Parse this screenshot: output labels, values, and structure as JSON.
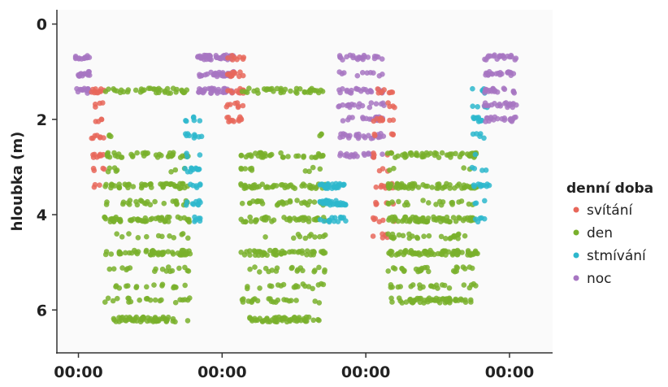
{
  "chart_data": {
    "type": "scatter",
    "title": "",
    "xlabel": "",
    "ylabel": "hloubka (m)",
    "y_reversed": true,
    "ylim": [
      6.9,
      -0.3
    ],
    "yticks": [
      0,
      2,
      4,
      6
    ],
    "xlim": [
      -0.15,
      3.3
    ],
    "xticks": [
      0,
      1,
      2,
      3
    ],
    "xtick_labels": [
      "00:00",
      "00:00",
      "00:00",
      "00:00"
    ],
    "grid": false,
    "legend": {
      "title": "denní doba",
      "position": "right"
    },
    "series": [
      {
        "name": "svítání",
        "color": "#e8675a"
      },
      {
        "name": "den",
        "color": "#79b02c"
      },
      {
        "name": "stmívání",
        "color": "#2db7cc"
      },
      {
        "name": "noc",
        "color": "#a776c2"
      }
    ],
    "segments": [
      {
        "series": 3,
        "x": [
          -0.02,
          0.08
        ],
        "depth": [
          0.7,
          1.4
        ]
      },
      {
        "series": 0,
        "x": [
          0.08,
          0.18
        ],
        "depth": [
          1.4,
          3.4
        ]
      },
      {
        "series": 1,
        "x": [
          0.18,
          0.78
        ],
        "depth": [
          1.4,
          6.2
        ]
      },
      {
        "series": 2,
        "x": [
          0.74,
          0.86
        ],
        "depth": [
          2.0,
          4.4
        ]
      },
      {
        "series": 3,
        "x": [
          0.83,
          1.08
        ],
        "depth": [
          0.7,
          1.5
        ]
      },
      {
        "series": 0,
        "x": [
          1.03,
          1.15
        ],
        "depth": [
          0.7,
          2.0
        ]
      },
      {
        "series": 1,
        "x": [
          1.13,
          1.72
        ],
        "depth": [
          1.4,
          6.2
        ]
      },
      {
        "series": 2,
        "x": [
          1.68,
          1.86
        ],
        "depth": [
          3.4,
          4.2
        ]
      },
      {
        "series": 3,
        "x": [
          1.81,
          2.13
        ],
        "depth": [
          0.7,
          2.8
        ]
      },
      {
        "series": 0,
        "x": [
          2.05,
          2.2
        ],
        "depth": [
          1.4,
          4.6
        ]
      },
      {
        "series": 1,
        "x": [
          2.15,
          2.78
        ],
        "depth": [
          2.0,
          5.8
        ]
      },
      {
        "series": 2,
        "x": [
          2.74,
          2.86
        ],
        "depth": [
          1.4,
          4.2
        ]
      },
      {
        "series": 3,
        "x": [
          2.82,
          3.05
        ],
        "depth": [
          0.7,
          2.0
        ]
      }
    ]
  }
}
